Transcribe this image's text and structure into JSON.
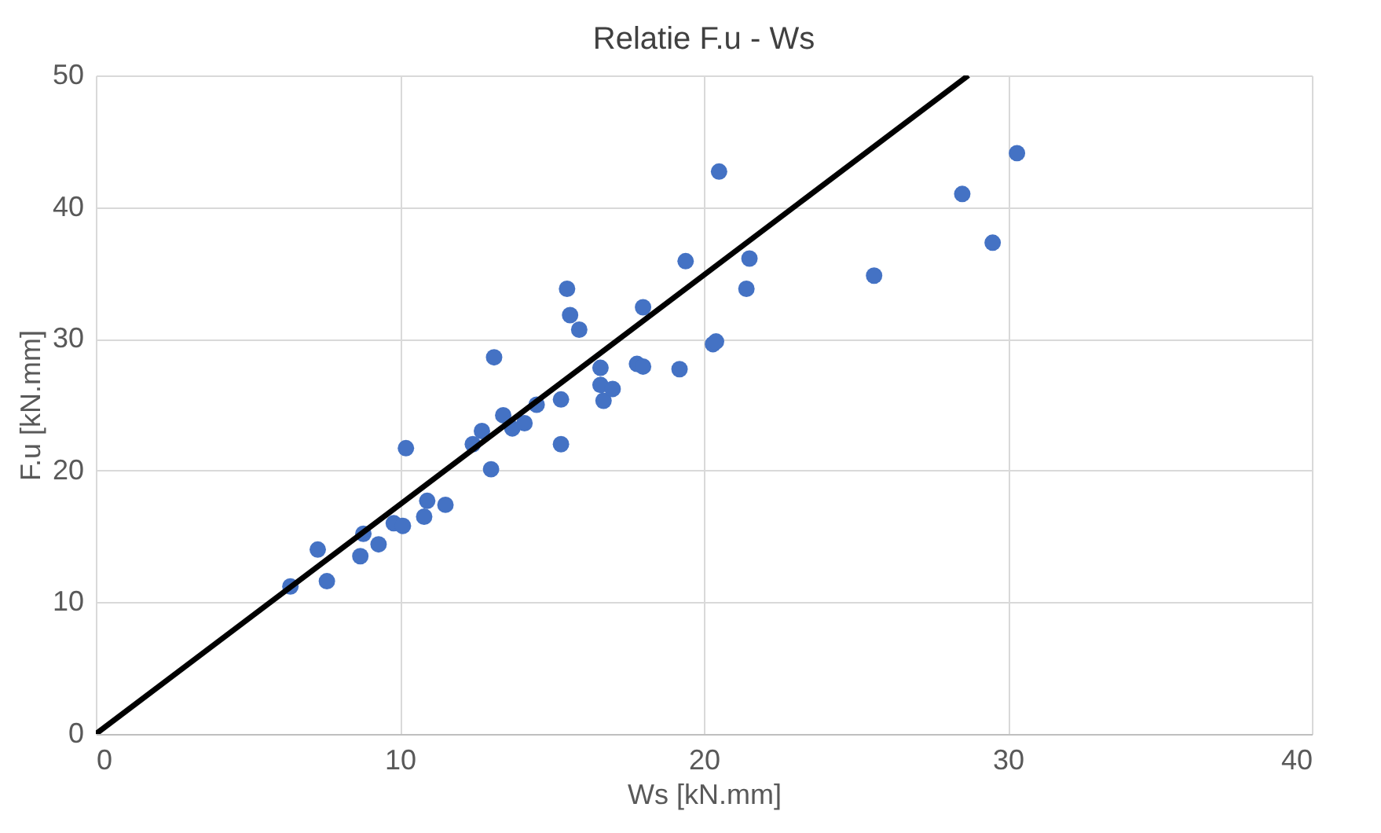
{
  "chart_data": {
    "type": "scatter",
    "title": "Relatie F.u - Ws",
    "xlabel": "Ws [kN.mm]",
    "ylabel": "F.u [kN.mm]",
    "xlim": [
      0,
      40
    ],
    "ylim": [
      0,
      50
    ],
    "xticks": [
      0,
      10,
      20,
      30,
      40
    ],
    "yticks": [
      0,
      10,
      20,
      30,
      40,
      50
    ],
    "grid": true,
    "series": [
      {
        "color": "#4472c4",
        "marker": "circle",
        "x": [
          6.4,
          7.3,
          7.6,
          8.7,
          8.8,
          9.3,
          9.8,
          10.1,
          10.2,
          10.8,
          10.9,
          11.5,
          12.4,
          12.7,
          13.0,
          13.1,
          13.4,
          13.7,
          14.1,
          14.5,
          15.3,
          15.3,
          15.5,
          15.6,
          15.9,
          16.6,
          16.6,
          16.7,
          17.0,
          17.8,
          18.0,
          18.0,
          19.2,
          19.4,
          20.3,
          20.4,
          20.5,
          21.4,
          21.5,
          25.6,
          28.5,
          29.5,
          30.3
        ],
        "values": [
          11.2,
          14.0,
          11.6,
          13.5,
          15.2,
          14.4,
          16.0,
          15.8,
          21.7,
          16.5,
          17.7,
          17.4,
          22.0,
          23.0,
          20.1,
          28.6,
          24.2,
          23.2,
          23.6,
          25.0,
          22.0,
          25.4,
          33.8,
          31.8,
          30.7,
          27.8,
          26.5,
          25.3,
          26.2,
          28.1,
          32.4,
          27.9,
          27.7,
          35.9,
          29.6,
          29.8,
          42.7,
          33.8,
          36.1,
          34.8,
          41.0,
          37.3,
          44.1
        ]
      },
      {
        "type": "line",
        "color": "#000000",
        "line_style": "solid",
        "x": [
          0,
          28.7
        ],
        "values": [
          0,
          50
        ]
      }
    ]
  }
}
